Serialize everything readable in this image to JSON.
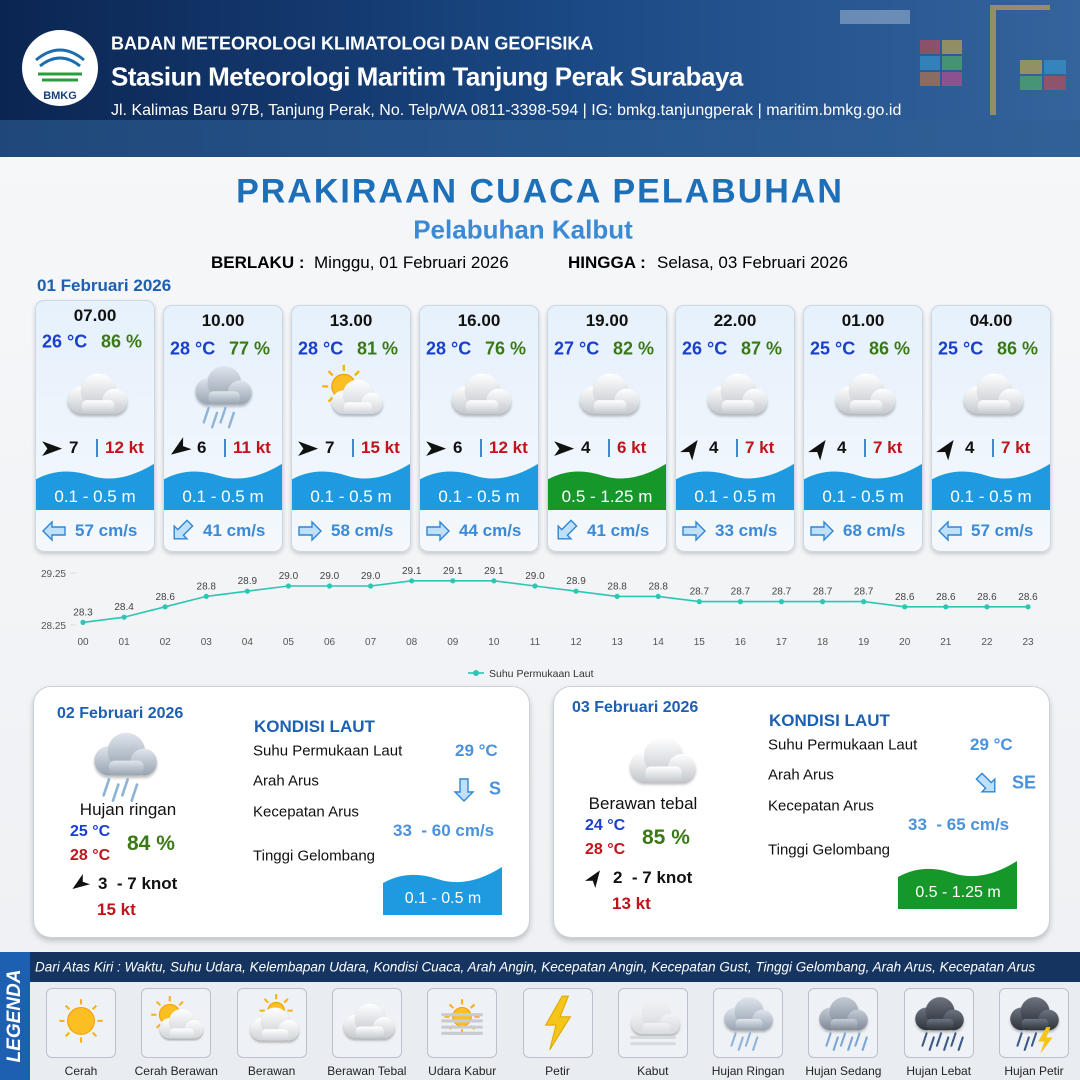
{
  "header": {
    "logo": "BMKG",
    "organization": "BADAN METEOROLOGI KLIMATOLOGI DAN GEOFISIKA",
    "station": "Stasiun Meteorologi Maritim Tanjung Perak Surabaya",
    "address": "Jl. Kalimas Baru 97B, Tanjung Perak, No. Telp/WA 0811-3398-594 | IG: bmkg.tanjungperak | maritim.bmkg.go.id"
  },
  "title": "PRAKIRAAN CUACA PELABUHAN",
  "subtitle": "Pelabuhan Kalbut",
  "validity": {
    "from_label": "BERLAKU :",
    "from": "Minggu, 01 Februari 2026",
    "to_label": "HINGGA :",
    "to": "Selasa, 03 Februari 2026"
  },
  "day1": {
    "date": "01 Februari 2026",
    "cards": [
      {
        "time": "07.00",
        "temperature": "26 °C",
        "humidity": "86 %",
        "wind": "7",
        "gust": "12 kt",
        "wave": "0.1 - 0.5 m",
        "wave_color": "#1e9be0",
        "current": "57 cm/s"
      },
      {
        "time": "10.00",
        "temperature": "28 °C",
        "humidity": "77 %",
        "wind": "6",
        "gust": "11 kt",
        "wave": "0.1 - 0.5 m",
        "wave_color": "#1e9be0",
        "current": "41 cm/s"
      },
      {
        "time": "13.00",
        "temperature": "28 °C",
        "humidity": "81 %",
        "wind": "7",
        "gust": "15 kt",
        "wave": "0.1 - 0.5 m",
        "wave_color": "#1e9be0",
        "current": "58 cm/s"
      },
      {
        "time": "16.00",
        "temperature": "28 °C",
        "humidity": "76 %",
        "wind": "6",
        "gust": "12 kt",
        "wave": "0.1 - 0.5 m",
        "wave_color": "#1e9be0",
        "current": "44 cm/s"
      },
      {
        "time": "19.00",
        "temperature": "27 °C",
        "humidity": "82 %",
        "wind": "4",
        "gust": "6 kt",
        "wave": "0.5 - 1.25 m",
        "wave_color": "#16972a",
        "current": "41 cm/s"
      },
      {
        "time": "22.00",
        "temperature": "26 °C",
        "humidity": "87 %",
        "wind": "4",
        "gust": "7 kt",
        "wave": "0.1 - 0.5 m",
        "wave_color": "#1e9be0",
        "current": "33 cm/s"
      },
      {
        "time": "01.00",
        "temperature": "25 °C",
        "humidity": "86 %",
        "wind": "4",
        "gust": "7 kt",
        "wave": "0.1 - 0.5 m",
        "wave_color": "#1e9be0",
        "current": "68 cm/s"
      },
      {
        "time": "04.00",
        "temperature": "25 °C",
        "humidity": "86 %",
        "wind": "4",
        "gust": "7 kt",
        "wave": "0.1 - 0.5 m",
        "wave_color": "#1e9be0",
        "current": "57 cm/s"
      }
    ]
  },
  "chart_data": {
    "type": "line",
    "categories": [
      "00",
      "01",
      "02",
      "03",
      "04",
      "05",
      "06",
      "07",
      "08",
      "09",
      "10",
      "11",
      "12",
      "13",
      "14",
      "15",
      "16",
      "17",
      "18",
      "19",
      "20",
      "21",
      "22",
      "23"
    ],
    "series": [
      {
        "name": "Suhu Permukaan Laut",
        "color": "#2cc6b4",
        "values": [
          28.3,
          28.4,
          28.6,
          28.8,
          28.9,
          29.0,
          29.0,
          29.0,
          29.1,
          29.1,
          29.1,
          29.0,
          28.9,
          28.8,
          28.8,
          28.7,
          28.7,
          28.7,
          28.7,
          28.7,
          28.6,
          28.6,
          28.6,
          28.6
        ],
        "value_labels": [
          "28.3",
          "28.4",
          "28.6",
          "28.8",
          "28.9",
          "29.0",
          "29.0",
          "29.0",
          "29.1",
          "29.1",
          "29.1",
          "29.0",
          "28.9",
          "28.8",
          "28.8",
          "28.7",
          "28.7",
          "28.7",
          "28.7",
          "28.7",
          "28.6",
          "28.6",
          "28.6",
          "28.6"
        ]
      }
    ],
    "ylim": [
      28.25,
      29.25
    ],
    "yticks": [
      28.25,
      29.25
    ],
    "legend": "bottom"
  },
  "day2": {
    "date": "02 Februari 2026",
    "condition": "Hujan ringan",
    "temp_min": "25 °C",
    "temp_max": "28 °C",
    "humidity": "84 %",
    "wind": "3  - 7 knot",
    "gust": "15 kt",
    "sea_heading": "KONDISI LAUT",
    "sst_label": "Suhu Permukaan Laut",
    "sst": "29 °C",
    "current_dir_label": "Arah Arus",
    "current_dir": "S",
    "current_speed_label": "Kecepatan Arus",
    "current_speed": "33  - 60 cm/s",
    "wave_label": "Tinggi Gelombang",
    "wave": "0.1 - 0.5 m",
    "wave_color": "#1e9be0"
  },
  "day3": {
    "date": "03 Februari 2026",
    "condition": "Berawan tebal",
    "temp_min": "24 °C",
    "temp_max": "28 °C",
    "humidity": "85 %",
    "wind": "2  - 7 knot",
    "gust": "13 kt",
    "sea_heading": "KONDISI LAUT",
    "sst_label": "Suhu Permukaan Laut",
    "sst": "29 °C",
    "current_dir_label": "Arah Arus",
    "current_dir": "SE",
    "current_speed_label": "Kecepatan Arus",
    "current_speed": "33  - 65 cm/s",
    "wave_label": "Tinggi Gelombang",
    "wave": "0.5 - 1.25 m",
    "wave_color": "#16972a"
  },
  "legend": {
    "title": "LEGENDA",
    "description": "Dari Atas Kiri : Waktu, Suhu Udara, Kelembapan Udara, Kondisi Cuaca, Arah Angin, Kecepatan Angin, Kecepatan Gust, Tinggi Gelombang, Arah Arus, Kecepatan Arus",
    "items": [
      "Cerah",
      "Cerah Berawan",
      "Berawan",
      "Berawan Tebal",
      "Udara Kabur",
      "Petir",
      "Kabut",
      "Hujan Ringan",
      "Hujan Sedang",
      "Hujan Lebat",
      "Hujan Petir"
    ]
  }
}
